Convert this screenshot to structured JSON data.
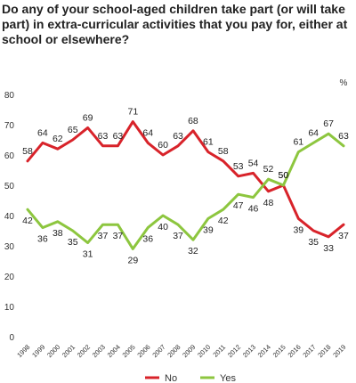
{
  "chart_data": {
    "type": "line",
    "title": "Do any of your school-aged children take part (or will take part) in extra-curricular activities that you pay for, either at school or elsewhere?",
    "unit_label": "%",
    "x": [
      "1998",
      "1999",
      "2000",
      "2001",
      "2002",
      "2003",
      "2004",
      "2005",
      "2006",
      "2007",
      "2008",
      "2009",
      "2010",
      "2011",
      "2012",
      "2013",
      "2014",
      "2015",
      "2016",
      "2017",
      "2018",
      "2019"
    ],
    "ylim": [
      0,
      80
    ],
    "yticks": [
      0,
      10,
      20,
      30,
      40,
      50,
      60,
      70,
      80
    ],
    "grid": false,
    "legend_position": "bottom",
    "series": [
      {
        "name": "No",
        "color": "#d8232a",
        "values": [
          58,
          64,
          62,
          65,
          69,
          63,
          63,
          71,
          64,
          60,
          63,
          68,
          61,
          58,
          53,
          54,
          48,
          50,
          39,
          35,
          33,
          37
        ]
      },
      {
        "name": "Yes",
        "color": "#8dc63f",
        "values": [
          42,
          36,
          38,
          35,
          31,
          37,
          37,
          29,
          36,
          40,
          37,
          32,
          39,
          42,
          47,
          46,
          52,
          50,
          61,
          64,
          67,
          63
        ]
      }
    ]
  }
}
